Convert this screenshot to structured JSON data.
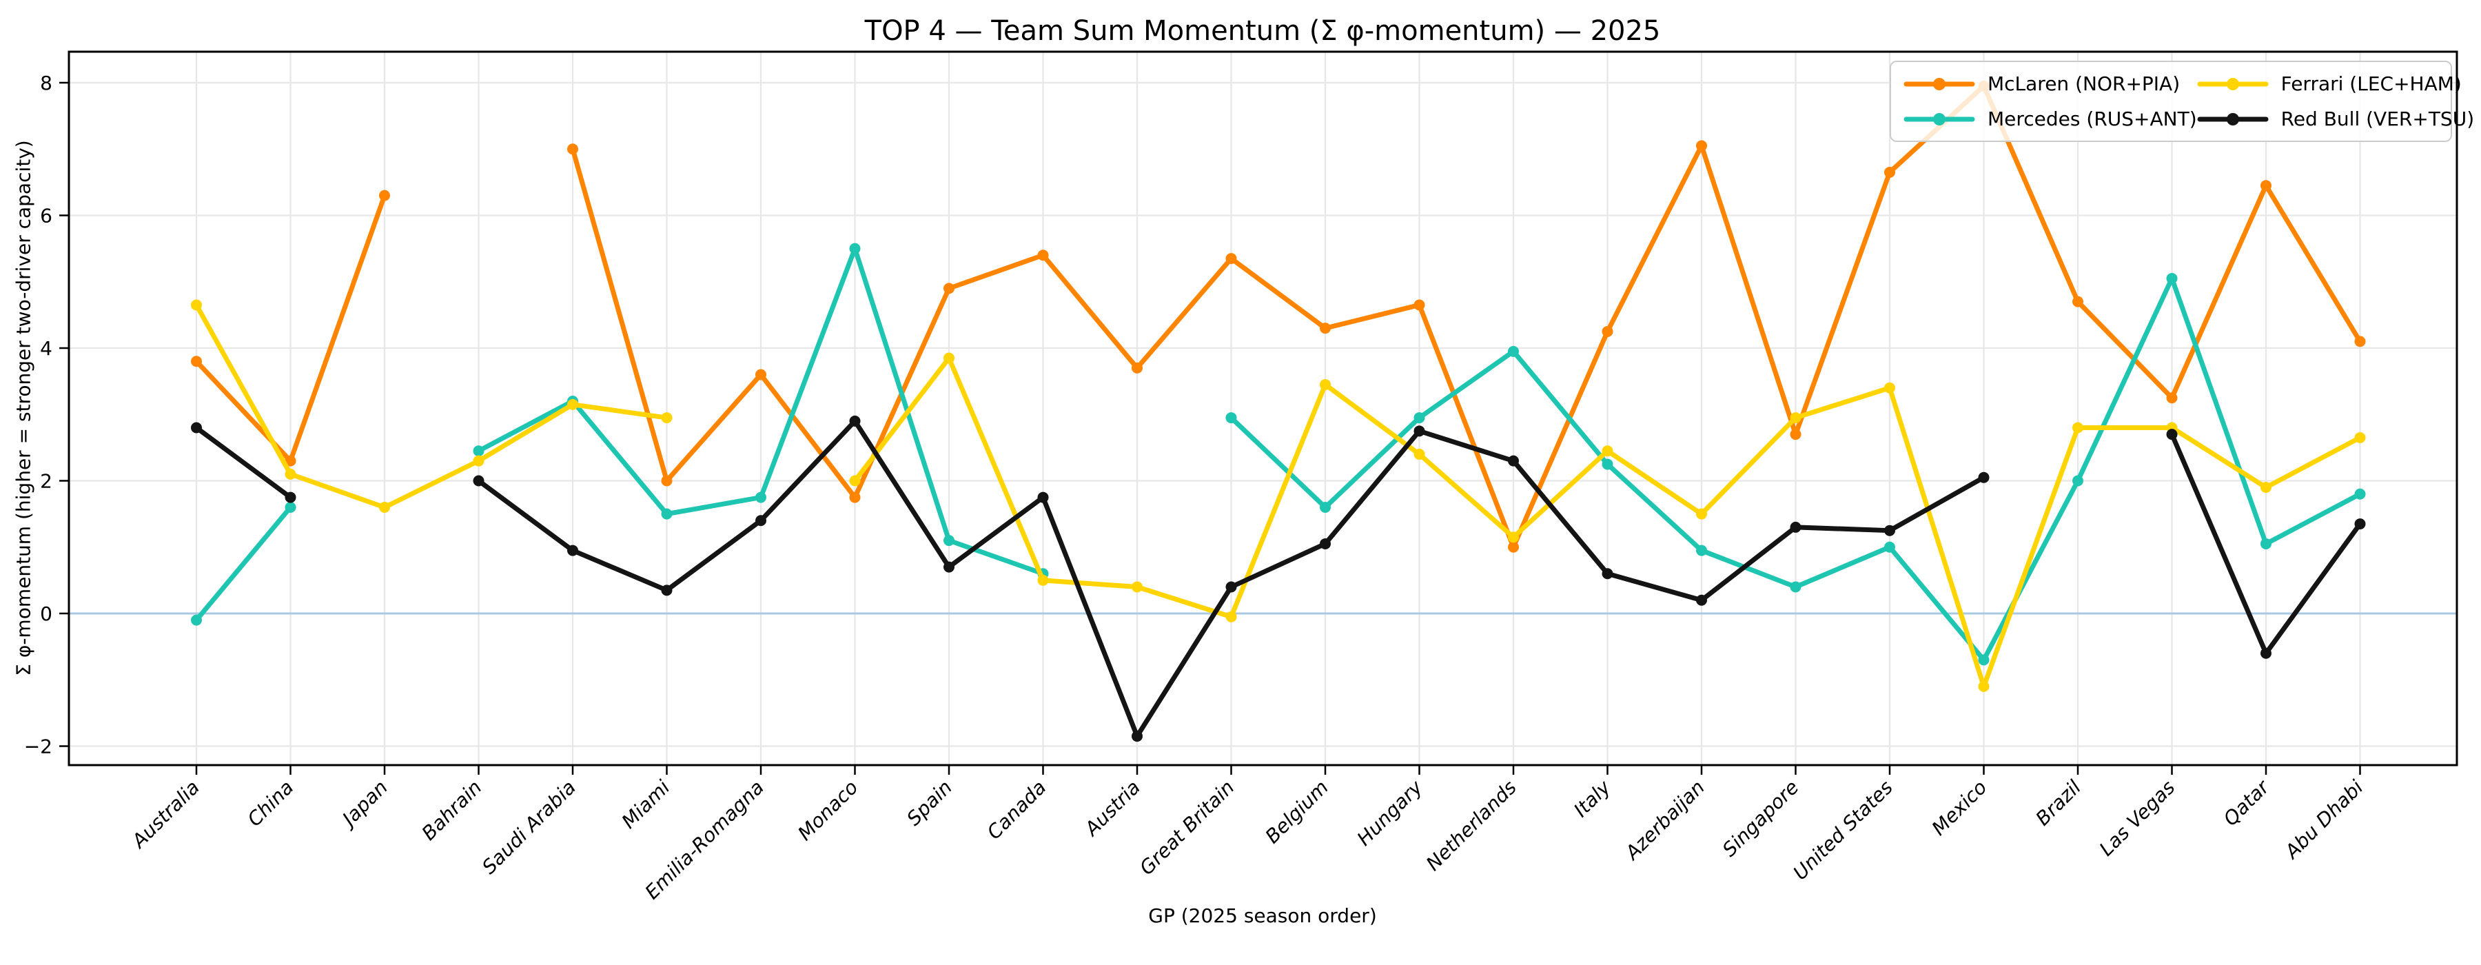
{
  "title": "TOP 4 — Team Sum Momentum (Σ φ-momentum) — 2025",
  "chart_data": {
    "type": "line",
    "title": "TOP 4 — Team Sum Momentum (Σ φ-momentum) — 2025",
    "xlabel": "GP (2025 season order)",
    "ylabel": "Σ φ-momentum (higher = stronger two-driver capacity)",
    "ylim": [
      -2.4,
      8.5
    ],
    "yticks": [
      -2,
      0,
      2,
      4,
      6,
      8
    ],
    "grid": true,
    "grid_color": "#e7e7e7",
    "zero_line_color": "#a9c9e2",
    "spine_color": "#000000",
    "legend_position": "upper right",
    "marker": "circle",
    "categories": [
      "Australia",
      "China",
      "Japan",
      "Bahrain",
      "Saudi Arabia",
      "Miami",
      "Emilia-Romagna",
      "Monaco",
      "Spain",
      "Canada",
      "Austria",
      "Great Britain",
      "Belgium",
      "Hungary",
      "Netherlands",
      "Italy",
      "Azerbaijan",
      "Singapore",
      "United States",
      "Mexico",
      "Brazil",
      "Las Vegas",
      "Qatar",
      "Abu Dhabi"
    ],
    "series": [
      {
        "name": "McLaren (NOR+PIA)",
        "color": "#ff8400",
        "values": [
          3.8,
          2.3,
          6.3,
          null,
          7.0,
          2.0,
          3.6,
          1.75,
          4.9,
          5.4,
          3.7,
          5.35,
          4.3,
          4.65,
          1.0,
          4.25,
          7.05,
          2.7,
          6.65,
          7.95,
          4.7,
          3.25,
          6.45,
          4.1
        ]
      },
      {
        "name": "Mercedes (RUS+ANT)",
        "color": "#1ec6b2",
        "values": [
          -0.1,
          1.6,
          null,
          2.45,
          3.2,
          1.5,
          1.75,
          5.5,
          1.1,
          0.6,
          null,
          2.95,
          1.6,
          2.95,
          3.95,
          2.25,
          0.95,
          0.4,
          1.0,
          -0.7,
          2.0,
          5.05,
          1.05,
          1.8
        ]
      },
      {
        "name": "Ferrari (LEC+HAM)",
        "color": "#ffd400",
        "values": [
          4.65,
          2.1,
          1.6,
          2.3,
          3.15,
          2.95,
          null,
          2.0,
          3.85,
          0.5,
          0.4,
          -0.05,
          3.45,
          2.4,
          1.15,
          2.45,
          1.5,
          2.95,
          3.4,
          -1.1,
          2.8,
          2.8,
          1.9,
          2.65
        ]
      },
      {
        "name": "Red Bull (VER+TSU)",
        "color": "#141414",
        "values": [
          2.8,
          1.75,
          null,
          2.0,
          0.95,
          0.35,
          1.4,
          2.9,
          0.7,
          1.75,
          -1.85,
          0.4,
          1.05,
          2.75,
          2.3,
          0.6,
          0.2,
          1.3,
          1.25,
          2.05,
          null,
          2.7,
          -0.6,
          1.35
        ]
      }
    ]
  }
}
